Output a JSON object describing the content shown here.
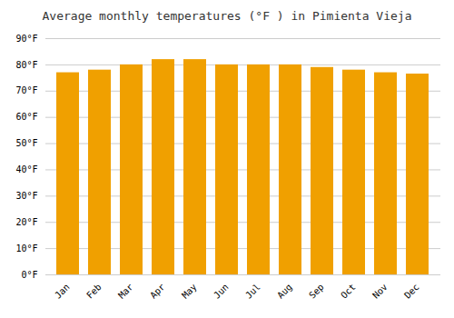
{
  "chart_data": {
    "type": "bar",
    "title": "Average monthly temperatures (°F ) in Pimienta Vieja",
    "categories": [
      "Jan",
      "Feb",
      "Mar",
      "Apr",
      "May",
      "Jun",
      "Jul",
      "Aug",
      "Sep",
      "Oct",
      "Nov",
      "Dec"
    ],
    "values": [
      77,
      78,
      80,
      82,
      82,
      80,
      80,
      80,
      79,
      78,
      77,
      76.5
    ],
    "color": "#F0A000",
    "ylim": [
      0,
      90
    ],
    "yticks": [
      {
        "value": 0,
        "label": "0°F"
      },
      {
        "value": 10,
        "label": "10°F"
      },
      {
        "value": 20,
        "label": "20°F"
      },
      {
        "value": 30,
        "label": "30°F"
      },
      {
        "value": 40,
        "label": "40°F"
      },
      {
        "value": 50,
        "label": "50°F"
      },
      {
        "value": 60,
        "label": "60°F"
      },
      {
        "value": 70,
        "label": "70°F"
      },
      {
        "value": 80,
        "label": "80°F"
      },
      {
        "value": 90,
        "label": "90°F"
      }
    ],
    "grid": true
  }
}
